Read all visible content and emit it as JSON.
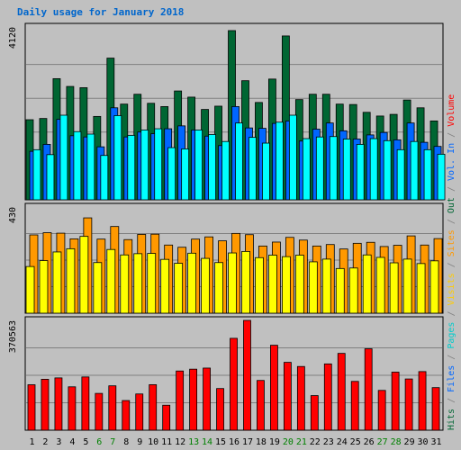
{
  "chart_data": {
    "title": "Daily usage for January 2018",
    "type": "bar",
    "x": [
      "1",
      "2",
      "3",
      "4",
      "5",
      "6",
      "7",
      "8",
      "9",
      "10",
      "11",
      "12",
      "13",
      "14",
      "15",
      "16",
      "17",
      "18",
      "19",
      "20",
      "21",
      "22",
      "23",
      "24",
      "25",
      "26",
      "27",
      "28",
      "29",
      "30",
      "31"
    ],
    "weekend_days": [
      "6",
      "7",
      "13",
      "14",
      "20",
      "21",
      "27",
      "28"
    ],
    "panels": [
      {
        "name": "hits-pages-files",
        "ymax_label": "4120",
        "ymax": 4120,
        "series": [
          {
            "name": "Hits",
            "color": "#006633",
            "values": [
              1950,
              1980,
              2950,
              2760,
              2730,
              2030,
              3450,
              2330,
              2570,
              2350,
              2270,
              2650,
              2500,
              2200,
              2280,
              4120,
              2900,
              2370,
              2940,
              3990,
              2440,
              2570,
              2570,
              2330,
              2320,
              2130,
              2040,
              2080,
              2430,
              2240,
              1920
            ]
          },
          {
            "name": "Files",
            "color": "#0066ff",
            "values": [
              1180,
              1350,
              1960,
              1560,
              1530,
              1290,
              2240,
              1530,
              1650,
              1610,
              1730,
              1800,
              1700,
              1550,
              1320,
              2270,
              1750,
              1740,
              1860,
              1920,
              1430,
              1720,
              1870,
              1680,
              1480,
              1580,
              1640,
              1460,
              1870,
              1400,
              1300
            ]
          },
          {
            "name": "Pages",
            "color": "#00ffff",
            "values": [
              1220,
              1100,
              2060,
              1660,
              1600,
              1080,
              2050,
              1570,
              1700,
              1730,
              1270,
              1240,
              1700,
              1590,
              1420,
              1870,
              1520,
              1380,
              1890,
              2060,
              1490,
              1530,
              1540,
              1480,
              1350,
              1490,
              1440,
              1220,
              1420,
              1220,
              1110
            ]
          }
        ]
      },
      {
        "name": "visits-sites",
        "ymax_label": "430",
        "ymax": 430,
        "series": [
          {
            "name": "Sites",
            "color": "#ff9900",
            "values": [
              317,
              326,
              324,
              301,
              386,
              300,
              351,
              298,
              319,
              320,
              276,
              267,
              300,
              309,
              293,
              323,
              318,
              272,
              288,
              307,
              296,
              272,
              278,
              260,
              283,
              287,
              270,
              275,
              313,
              276,
              302
            ]
          },
          {
            "name": "Visits",
            "color": "#ffff00",
            "values": [
              189,
              213,
              248,
              261,
              311,
              205,
              258,
              236,
              241,
              242,
              218,
              202,
              243,
              222,
              205,
              244,
              250,
              225,
              235,
              229,
              235,
              208,
              219,
              181,
              183,
              236,
              226,
              204,
              219,
              201,
              212
            ]
          }
        ]
      },
      {
        "name": "kbytes",
        "ymax_label": "370563",
        "ymax": 370563,
        "series": [
          {
            "name": "KBytes",
            "color": "#ff0000",
            "values": [
              153400,
              171900,
              176500,
              146400,
              179700,
              124200,
              149800,
              100100,
              122300,
              153600,
              84300,
              199800,
              206000,
              209700,
              140600,
              310100,
              370563,
              167900,
              286700,
              229000,
              215000,
              116800,
              223700,
              259200,
              164700,
              274800,
              134300,
              196000,
              172900,
              197800,
              143700
            ]
          }
        ]
      }
    ],
    "legend_right": [
      {
        "text": "Hits",
        "color": "#006633"
      },
      {
        "text": " / ",
        "color": "#808080"
      },
      {
        "text": "Files",
        "color": "#0066ff"
      },
      {
        "text": " / ",
        "color": "#808080"
      },
      {
        "text": "Pages",
        "color": "#00cccc"
      },
      {
        "text": " / ",
        "color": "#808080"
      },
      {
        "text": "Visits",
        "color": "#ffcc00"
      },
      {
        "text": " / ",
        "color": "#808080"
      },
      {
        "text": "Sites",
        "color": "#ff9900"
      },
      {
        "text": " / ",
        "color": "#808080"
      },
      {
        "text": "Out",
        "color": "#006633"
      },
      {
        "text": " / ",
        "color": "#808080"
      },
      {
        "text": "Vol. In",
        "color": "#0066ff"
      },
      {
        "text": " / ",
        "color": "#808080"
      },
      {
        "text": "Volume",
        "color": "#ff0000"
      }
    ],
    "legend_order": "bottom-to-top",
    "grid": true
  }
}
